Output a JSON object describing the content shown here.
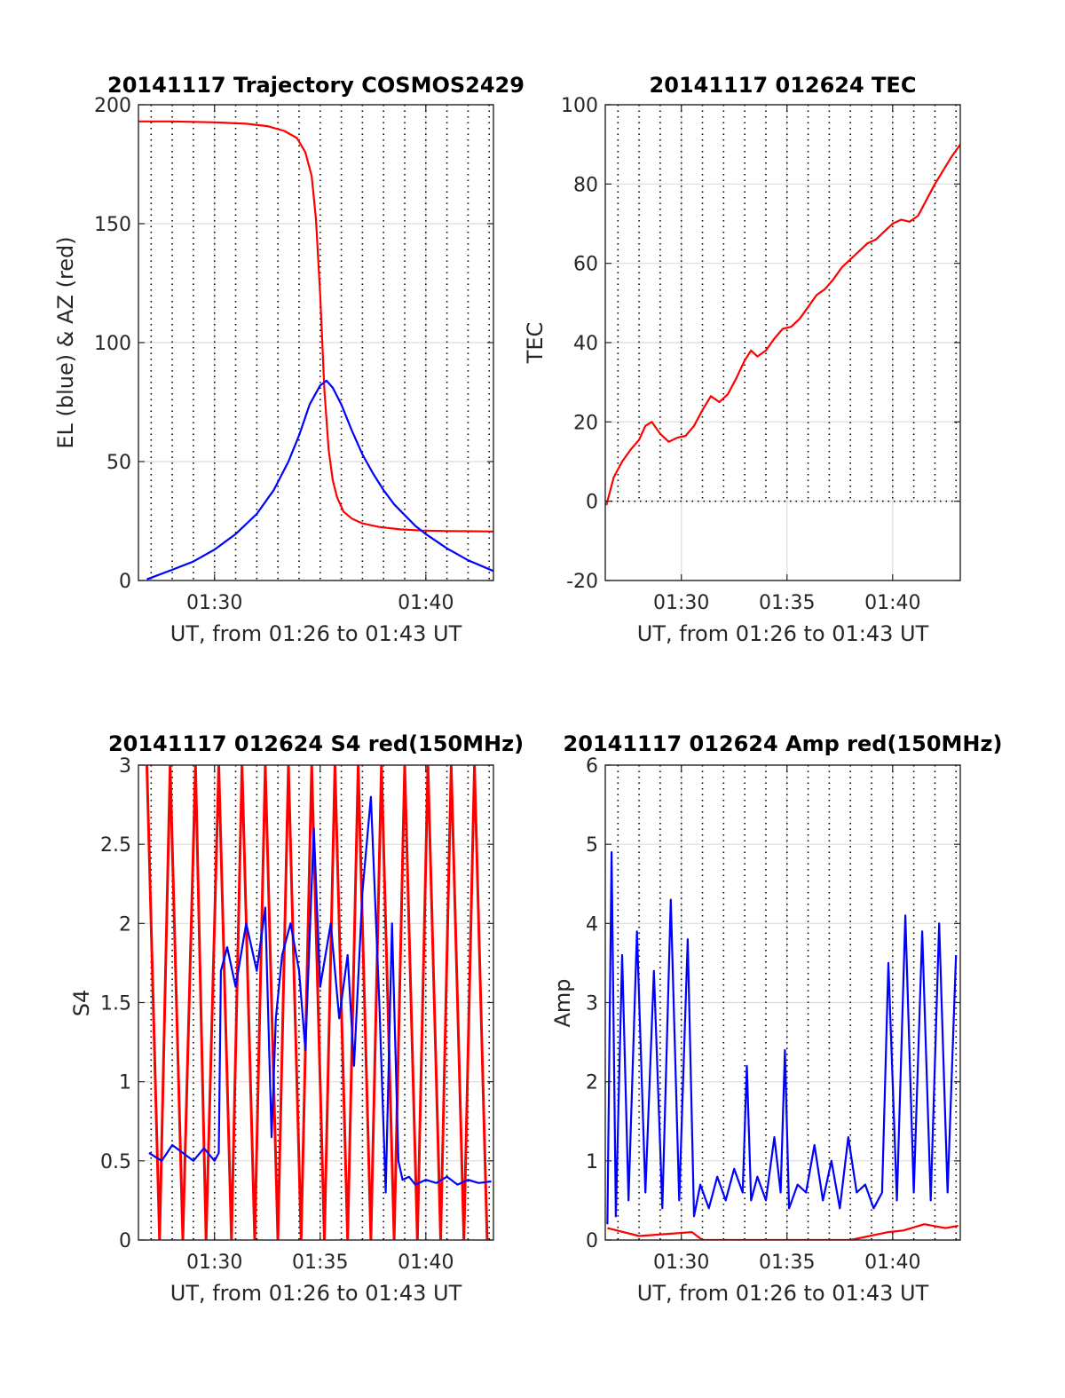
{
  "chart_data": [
    {
      "id": "traj",
      "type": "line",
      "title": "20141117 Trajectory COSMOS2429",
      "xlabel": "UT, from 01:26 to 01:43 UT",
      "ylabel": "EL (blue) & AZ (red)",
      "xlim": [
        86.4,
        103.2
      ],
      "ylim": [
        0,
        200
      ],
      "xticks": [
        90,
        100
      ],
      "xtick_labels": [
        "01:30",
        "01:40"
      ],
      "yticks": [
        0,
        50,
        100,
        150,
        200
      ],
      "ytick_labels": [
        "0",
        "50",
        "100",
        "150",
        "200"
      ],
      "grid": true,
      "series": [
        {
          "color": "#ff0000",
          "x": [
            86.4,
            88,
            90,
            91.5,
            92.5,
            93.3,
            93.9,
            94.3,
            94.6,
            94.8,
            95,
            95.2,
            95.4,
            95.6,
            95.8,
            96.1,
            96.5,
            97,
            97.8,
            98.8,
            99.8,
            101,
            102,
            103.2
          ],
          "y": [
            193,
            193,
            192.6,
            192,
            191,
            189,
            186,
            180,
            170,
            152,
            120,
            80,
            55,
            42,
            35,
            29,
            26,
            24,
            22.5,
            21.5,
            21,
            20.8,
            20.7,
            20.6
          ]
        },
        {
          "color": "#0000ff",
          "x": [
            86.8,
            88,
            89,
            90,
            91,
            92,
            92.8,
            93.5,
            94,
            94.5,
            95,
            95.3,
            95.6,
            96,
            96.5,
            97,
            97.5,
            98,
            98.5,
            99,
            99.5,
            100,
            101,
            102,
            103.2
          ],
          "y": [
            0.5,
            4.5,
            8,
            13,
            19.5,
            28,
            38,
            50,
            61,
            74,
            82,
            84,
            81,
            74,
            63,
            53,
            45,
            38,
            32,
            27.5,
            23,
            19.5,
            13.5,
            8.5,
            4
          ]
        }
      ]
    },
    {
      "id": "tec",
      "type": "line",
      "title": "20141117 012624 TEC",
      "xlabel": "UT, from 01:26 to 01:43 UT",
      "ylabel": "TEC",
      "xlim": [
        86.4,
        103.2
      ],
      "ylim": [
        -20,
        100
      ],
      "xticks": [
        90,
        95,
        100
      ],
      "xtick_labels": [
        "01:30",
        "01:35",
        "01:40"
      ],
      "yticks": [
        -20,
        0,
        20,
        40,
        60,
        80,
        100
      ],
      "ytick_labels": [
        "-20",
        "0",
        "20",
        "40",
        "60",
        "80",
        "100"
      ],
      "grid": true,
      "series": [
        {
          "color": "#ff0000",
          "x": [
            86.45,
            86.8,
            87.2,
            87.6,
            88,
            88.3,
            88.6,
            89,
            89.4,
            89.8,
            90.2,
            90.6,
            91,
            91.4,
            91.8,
            92.2,
            92.6,
            93,
            93.3,
            93.6,
            94,
            94.4,
            94.8,
            95.2,
            95.6,
            96,
            96.4,
            96.8,
            97.2,
            97.6,
            98,
            98.4,
            98.8,
            99.2,
            99.6,
            100,
            100.4,
            100.8,
            101.2,
            101.6,
            102,
            102.4,
            102.8,
            103.2
          ],
          "y": [
            -1,
            6,
            10,
            13,
            15.5,
            19,
            20,
            17,
            15,
            16,
            16.5,
            19,
            23,
            26.5,
            25,
            27,
            31,
            35.5,
            38,
            36.5,
            38,
            41,
            43.5,
            44,
            46,
            49,
            52,
            53.5,
            56,
            59,
            61,
            63,
            65,
            66,
            68,
            70,
            71,
            70.5,
            72,
            76,
            80,
            83.5,
            87,
            90
          ]
        }
      ]
    },
    {
      "id": "s4",
      "type": "line",
      "title": "20141117 012624 S4 red(150MHz)",
      "xlabel": "UT, from 01:26 to 01:43 UT",
      "ylabel": "S4",
      "xlim": [
        86.4,
        103.2
      ],
      "ylim": [
        0,
        3
      ],
      "xticks": [
        90,
        95,
        100
      ],
      "xtick_labels": [
        "01:30",
        "01:35",
        "01:40"
      ],
      "yticks": [
        0,
        0.5,
        1,
        1.5,
        2,
        2.5,
        3
      ],
      "ytick_labels": [
        "0",
        "0.5",
        "1",
        "1.5",
        "2",
        "2.5",
        "3"
      ],
      "grid": true,
      "series": [
        {
          "color": "#ff0000",
          "x": [
            86.8,
            87.4,
            87.9,
            88.5,
            89.1,
            89.6,
            90.2,
            90.8,
            91.3,
            91.9,
            92.4,
            93,
            93.5,
            94.1,
            94.6,
            95.2,
            95.7,
            96.3,
            96.8,
            97.4,
            97.9,
            98.5,
            99,
            99.6,
            100.1,
            100.7,
            101.2,
            101.8,
            102.3,
            102.9
          ],
          "y": [
            3,
            0,
            3,
            0,
            3,
            0,
            3,
            0,
            3,
            0,
            3,
            0,
            3,
            0,
            3,
            0,
            3,
            0,
            3,
            0,
            3,
            0,
            3,
            0,
            3,
            0,
            3,
            0,
            3,
            0
          ]
        },
        {
          "color": "#0000ff",
          "x": [
            86.9,
            87.5,
            88,
            88.5,
            89,
            89.5,
            90,
            90.2,
            90.3,
            90.6,
            91,
            91.5,
            92,
            92.4,
            92.7,
            92.9,
            93.2,
            93.6,
            94,
            94.3,
            94.7,
            95,
            95.5,
            95.9,
            96.3,
            96.6,
            97,
            97.4,
            97.8,
            98.1,
            98.4,
            98.7,
            98.9,
            99.2,
            99.5,
            100,
            100.5,
            101,
            101.5,
            102,
            102.5,
            103.1
          ],
          "y": [
            0.55,
            0.5,
            0.6,
            0.55,
            0.5,
            0.58,
            0.5,
            0.55,
            1.7,
            1.85,
            1.6,
            2.0,
            1.7,
            2.1,
            0.65,
            1.4,
            1.8,
            2.0,
            1.7,
            1.2,
            2.6,
            1.6,
            2.0,
            1.4,
            1.8,
            1.1,
            2.2,
            2.8,
            1.5,
            0.3,
            2.0,
            0.5,
            0.38,
            0.4,
            0.35,
            0.38,
            0.36,
            0.4,
            0.35,
            0.38,
            0.36,
            0.37
          ]
        }
      ]
    },
    {
      "id": "amp",
      "type": "line",
      "title": "20141117 012624 Amp red(150MHz)",
      "xlabel": "UT, from 01:26 to 01:43 UT",
      "ylabel": "Amp",
      "xlim": [
        86.4,
        103.2
      ],
      "ylim": [
        0,
        6
      ],
      "xticks": [
        90,
        95,
        100
      ],
      "xtick_labels": [
        "01:30",
        "01:35",
        "01:40"
      ],
      "yticks": [
        0,
        1,
        2,
        3,
        4,
        5,
        6
      ],
      "ytick_labels": [
        "0",
        "1",
        "2",
        "3",
        "4",
        "5",
        "6"
      ],
      "grid": true,
      "series": [
        {
          "color": "#0000ff",
          "x": [
            86.5,
            86.7,
            86.9,
            87.2,
            87.5,
            87.9,
            88.3,
            88.7,
            89.1,
            89.5,
            89.9,
            90.3,
            90.6,
            90.9,
            91.3,
            91.7,
            92.1,
            92.5,
            92.9,
            93.1,
            93.3,
            93.6,
            94,
            94.4,
            94.7,
            94.9,
            95.1,
            95.5,
            95.9,
            96.3,
            96.7,
            97.1,
            97.5,
            97.9,
            98.3,
            98.7,
            99.1,
            99.5,
            99.8,
            100.2,
            100.6,
            101,
            101.4,
            101.8,
            102.2,
            102.6,
            103
          ],
          "y": [
            0.2,
            4.9,
            0.3,
            3.6,
            0.5,
            3.9,
            0.6,
            3.4,
            0.4,
            4.3,
            0.5,
            3.8,
            0.3,
            0.7,
            0.4,
            0.8,
            0.5,
            0.9,
            0.6,
            2.2,
            0.5,
            0.8,
            0.5,
            1.3,
            0.6,
            2.4,
            0.4,
            0.7,
            0.6,
            1.2,
            0.5,
            1.0,
            0.4,
            1.3,
            0.6,
            0.7,
            0.4,
            0.6,
            3.5,
            0.5,
            4.1,
            0.6,
            3.9,
            0.5,
            4.0,
            0.6,
            3.6
          ]
        },
        {
          "color": "#ff0000",
          "x": [
            86.5,
            88,
            89.5,
            90.5,
            91,
            94,
            98,
            99.8,
            100.5,
            101.5,
            102.5,
            103.1
          ],
          "y": [
            0.15,
            0.05,
            0.08,
            0.1,
            0.0,
            0.0,
            0.0,
            0.1,
            0.12,
            0.2,
            0.15,
            0.18
          ]
        }
      ]
    }
  ]
}
